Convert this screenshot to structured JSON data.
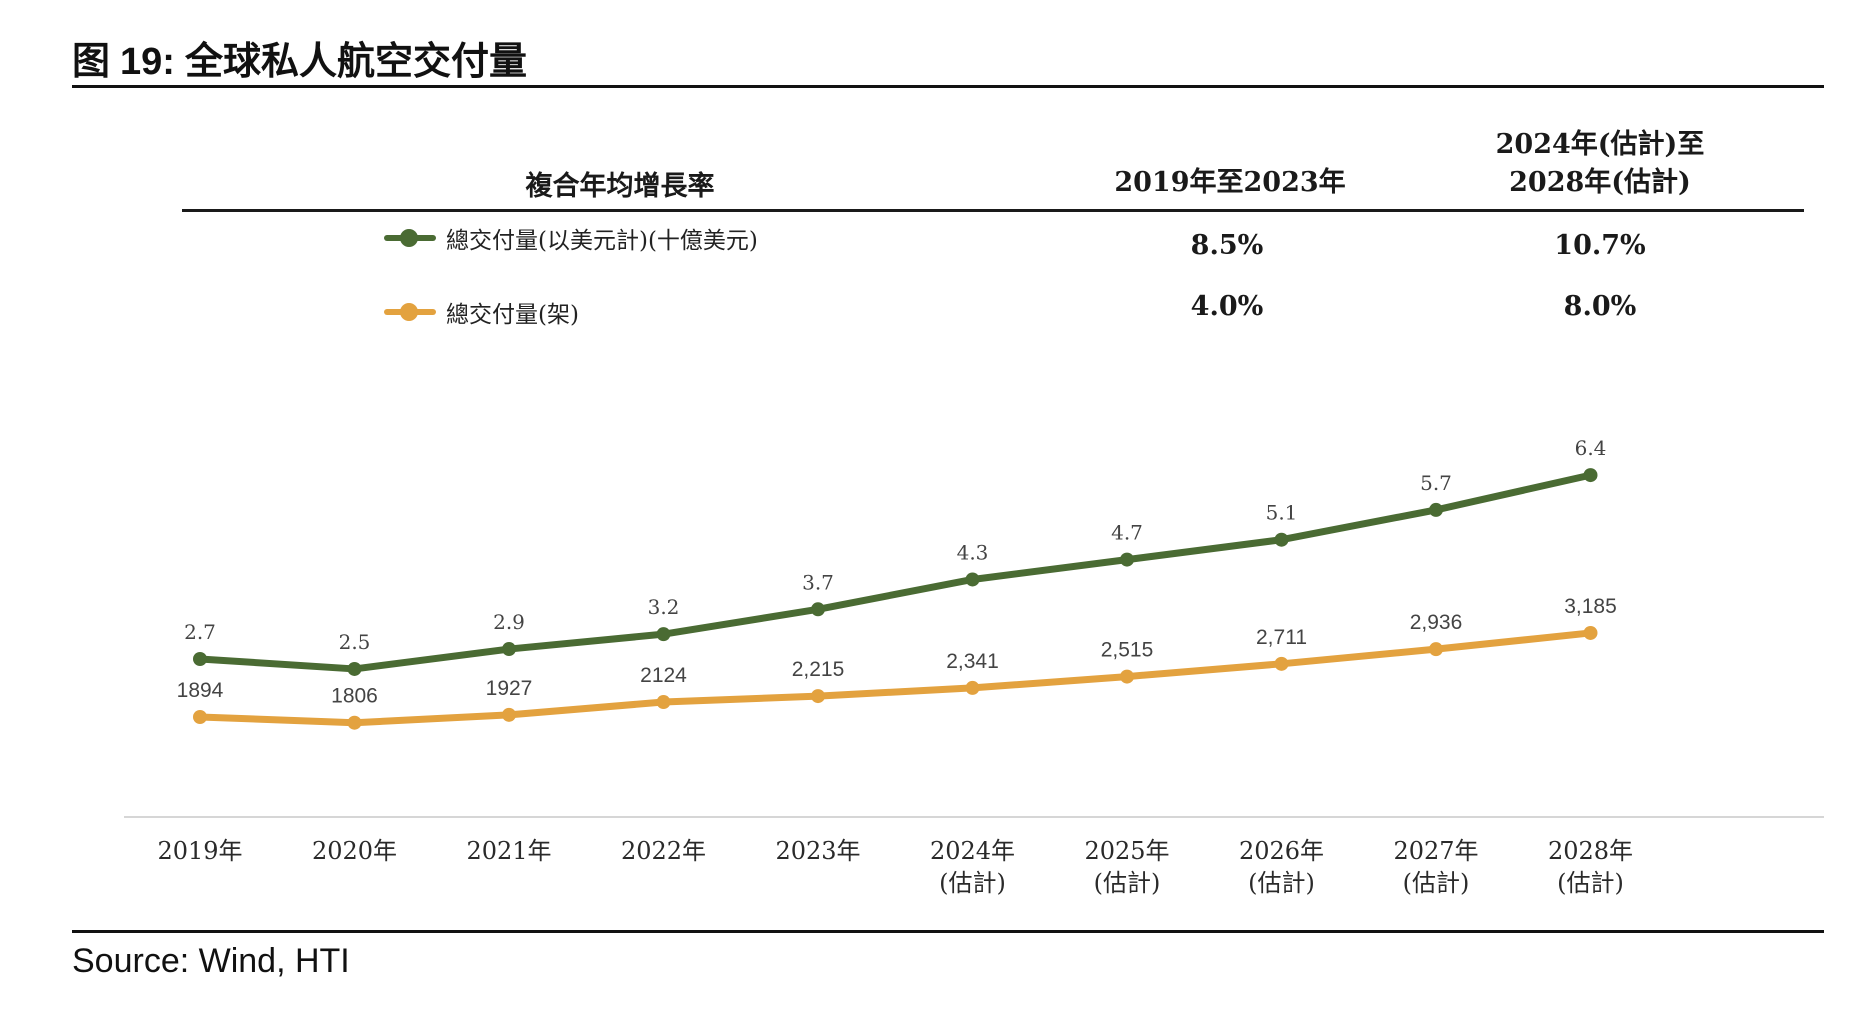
{
  "figure": {
    "label": "图",
    "number": "19:",
    "title": "全球私人航空交付量",
    "source": "Source: Wind, HTI"
  },
  "cagr_table": {
    "header": "複合年均增長率",
    "col1": "2019年至2023年",
    "col2_line1": "2024年(估計)至",
    "col2_line2": "2028年(估計)",
    "rows": [
      {
        "legend": "總交付量(以美元計)(十億美元)",
        "v1": "8.5%",
        "v2": "10.7%"
      },
      {
        "legend": "總交付量(架)",
        "v1": "4.0%",
        "v2": "8.0%"
      }
    ]
  },
  "colors": {
    "series_value": "#4a6b33",
    "series_units": "#e3a23f",
    "axis": "#d6d6d6",
    "label": "#444444"
  },
  "chart_data": {
    "type": "line",
    "categories": [
      [
        "2019年"
      ],
      [
        "2020年"
      ],
      [
        "2021年"
      ],
      [
        "2022年"
      ],
      [
        "2023年"
      ],
      [
        "2024年",
        "(估計)"
      ],
      [
        "2025年",
        "(估計)"
      ],
      [
        "2026年",
        "(估計)"
      ],
      [
        "2027年",
        "(估計)"
      ],
      [
        "2028年",
        "(估計)"
      ]
    ],
    "series": [
      {
        "name": "總交付量(以美元計)(十億美元)",
        "values": [
          2.7,
          2.5,
          2.9,
          3.2,
          3.7,
          4.3,
          4.7,
          5.1,
          5.7,
          6.4
        ],
        "labels": [
          "2.7",
          "2.5",
          "2.9",
          "3.2",
          "3.7",
          "4.3",
          "4.7",
          "5.1",
          "5.7",
          "6.4"
        ]
      },
      {
        "name": "總交付量(架)",
        "values": [
          1894,
          1806,
          1927,
          2124,
          2215,
          2341,
          2515,
          2711,
          2936,
          3185
        ],
        "labels": [
          "1894",
          "1806",
          "1927",
          "2124",
          "2,215",
          "2,341",
          "2,515",
          "2,711",
          "2,936",
          "3,185"
        ]
      }
    ],
    "grid": false,
    "legend": "top-left"
  }
}
